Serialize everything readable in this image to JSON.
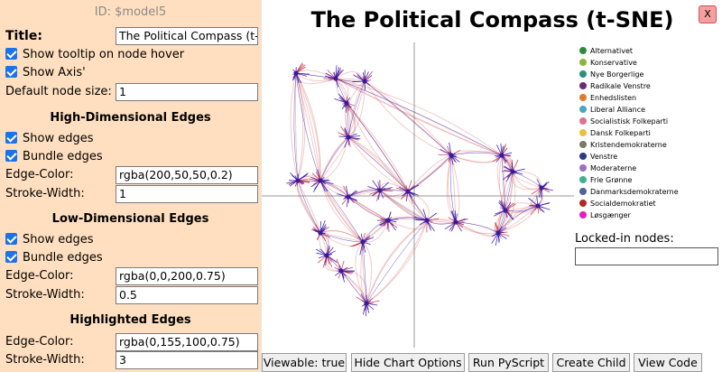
{
  "options": {
    "id_text": "ID: $model5",
    "title_label": "Title:",
    "title_value": "The Political Compass (t-S",
    "show_tooltip_label": "Show tooltip on node hover",
    "show_axis_label": "Show Axis'",
    "default_node_size_label": "Default node size:",
    "default_node_size_value": "1",
    "high_dim": {
      "heading": "High-Dimensional Edges",
      "show_edges_label": "Show edges",
      "bundle_edges_label": "Bundle edges",
      "edge_color_label": "Edge-Color:",
      "edge_color_value": "rgba(200,50,50,0.2)",
      "stroke_width_label": "Stroke-Width:",
      "stroke_width_value": "1"
    },
    "low_dim": {
      "heading": "Low-Dimensional Edges",
      "show_edges_label": "Show edges",
      "bundle_edges_label": "Bundle edges",
      "edge_color_label": "Edge-Color:",
      "edge_color_value": "rgba(0,0,200,0.75)",
      "stroke_width_label": "Stroke-Width:",
      "stroke_width_value": "0.5"
    },
    "highlighted": {
      "heading": "Highlighted Edges",
      "edge_color_label": "Edge-Color:",
      "edge_color_value": "rgba(0,155,100,0.75)",
      "stroke_width_label": "Stroke-Width:",
      "stroke_width_value": "3"
    }
  },
  "chart": {
    "title": "The Political Compass (t-SNE)",
    "close_label": "X",
    "locked_label": "Locked-in nodes:",
    "legend": [
      {
        "name": "Alternativet",
        "color": "#2e8b3d"
      },
      {
        "name": "Konservative",
        "color": "#8db53c"
      },
      {
        "name": "Nye Borgerlige",
        "color": "#2a8f7e"
      },
      {
        "name": "Radikale Venstre",
        "color": "#6a2a7a"
      },
      {
        "name": "Enhedslisten",
        "color": "#e07a2a"
      },
      {
        "name": "Liberal Alliance",
        "color": "#4aa8c0"
      },
      {
        "name": "Socialistisk Folkeparti",
        "color": "#e07090"
      },
      {
        "name": "Dansk Folkeparti",
        "color": "#e8c040"
      },
      {
        "name": "Kristendemokraterne",
        "color": "#7a7a6a"
      },
      {
        "name": "Venstre",
        "color": "#2a3a8a"
      },
      {
        "name": "Moderaterne",
        "color": "#9a70c8"
      },
      {
        "name": "Frie Grønne",
        "color": "#40b090"
      },
      {
        "name": "Danmarksdemokraterne",
        "color": "#5060a0"
      },
      {
        "name": "Socialdemokratiet",
        "color": "#b02a20"
      },
      {
        "name": "Løsgænger",
        "color": "#e020c0"
      }
    ]
  },
  "toolbar": {
    "viewable": "Viewable: true",
    "hide_options": "Hide Chart Options",
    "run_pyscript": "Run PyScript",
    "create_child": "Create Child",
    "view_code": "View Code"
  }
}
